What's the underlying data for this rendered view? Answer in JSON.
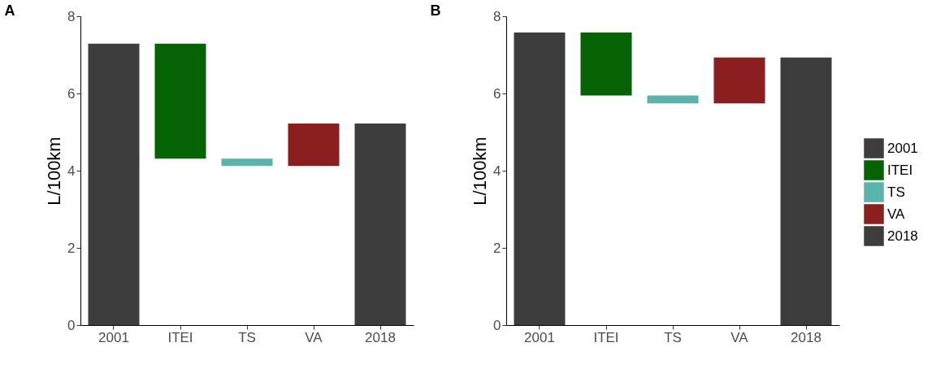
{
  "chart_data": [
    {
      "type": "bar",
      "title": "A",
      "ylabel": "L/100km",
      "categories": [
        "2001",
        "ITEI",
        "TS",
        "VA",
        "2018"
      ],
      "ylim": [
        0,
        8
      ],
      "yticks": [
        0,
        2,
        4,
        6,
        8
      ],
      "grid": false,
      "legend": false,
      "series": [
        {
          "color": "#3d3d3d",
          "values": [
            7.29,
            null,
            null,
            null,
            null
          ],
          "base": [
            0,
            null,
            null,
            null,
            null
          ]
        },
        {
          "color": "#056205",
          "values": [
            null,
            2.98,
            null,
            null,
            null
          ],
          "base": [
            null,
            4.31,
            null,
            null,
            null
          ]
        },
        {
          "color": "#5ab4ac",
          "values": [
            null,
            null,
            0.19,
            null,
            null
          ],
          "base": [
            null,
            null,
            4.12,
            null,
            null
          ]
        },
        {
          "color": "#8b1e1e",
          "values": [
            null,
            null,
            null,
            1.1,
            null
          ],
          "base": [
            null,
            null,
            null,
            4.12,
            null
          ]
        },
        {
          "color": "#3d3d3d",
          "values": [
            null,
            null,
            null,
            null,
            5.22
          ],
          "base": [
            null,
            null,
            null,
            null,
            0
          ]
        }
      ]
    },
    {
      "type": "bar",
      "title": "B",
      "ylabel": "L/100km",
      "categories": [
        "2001",
        "ITEI",
        "TS",
        "VA",
        "2018"
      ],
      "ylim": [
        0,
        8
      ],
      "yticks": [
        0,
        2,
        4,
        6,
        8
      ],
      "grid": false,
      "legend": "right",
      "series": [
        {
          "name": "2001",
          "color": "#3d3d3d",
          "values": [
            7.58,
            null,
            null,
            null,
            null
          ],
          "base": [
            0,
            null,
            null,
            null,
            null
          ]
        },
        {
          "name": "ITEI",
          "color": "#056205",
          "values": [
            null,
            1.63,
            null,
            null,
            null
          ],
          "base": [
            null,
            5.95,
            null,
            null,
            null
          ]
        },
        {
          "name": "TS",
          "color": "#5ab4ac",
          "values": [
            null,
            null,
            0.21,
            null,
            null
          ],
          "base": [
            null,
            null,
            5.74,
            null,
            null
          ]
        },
        {
          "name": "VA",
          "color": "#8b1e1e",
          "values": [
            null,
            null,
            null,
            1.19,
            null
          ],
          "base": [
            null,
            null,
            null,
            5.74,
            null
          ]
        },
        {
          "name": "2018",
          "color": "#3d3d3d",
          "values": [
            null,
            null,
            null,
            null,
            6.93
          ],
          "base": [
            null,
            null,
            null,
            null,
            0
          ]
        }
      ]
    }
  ]
}
